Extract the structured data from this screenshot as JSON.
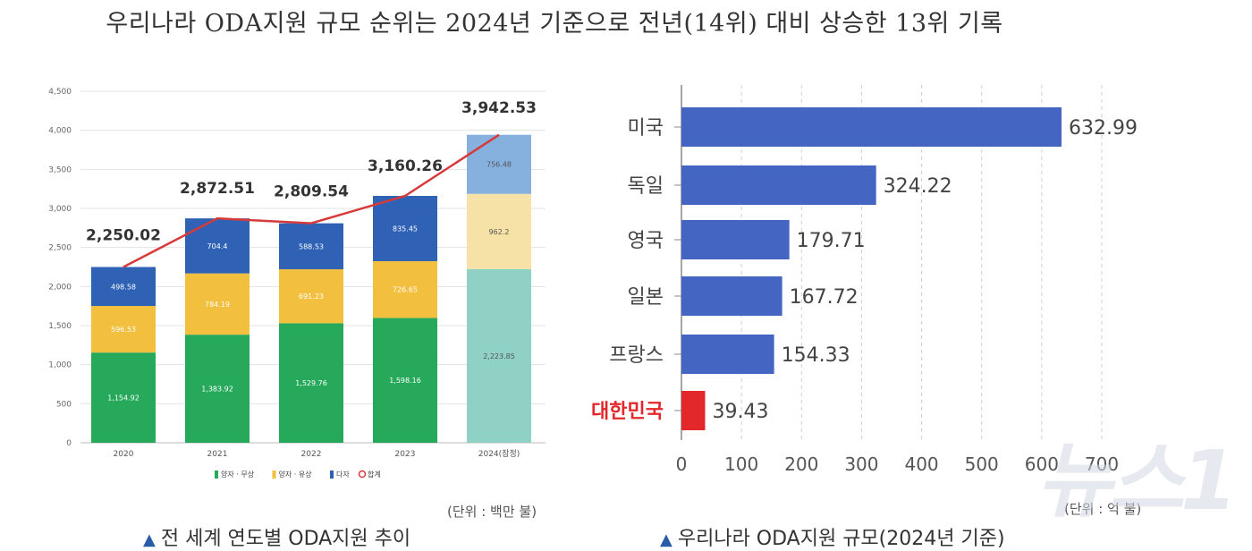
{
  "headline": "우리나라 ODA지원 규모 순위는 2024년 기준으로 전년(14위) 대비 상승한 13위 기록",
  "watermark": "뉴스1",
  "left_chart": {
    "caption": "전 세계 연도별 ODA지원 추이",
    "unit_note": "(단위 : 백만 불)"
  },
  "right_chart": {
    "caption": "우리나라 ODA지원 규모(2024년 기준)",
    "unit_note": "(단위 : 억 불)"
  },
  "chart_data": [
    {
      "type": "bar",
      "stacked": true,
      "categories": [
        "2020",
        "2021",
        "2022",
        "2023",
        "2024(잠정)"
      ],
      "series": [
        {
          "name": "양자 · 무상",
          "values": [
            1154.92,
            1383.92,
            1529.76,
            1598.16,
            2223.85
          ],
          "color": "#27a95c",
          "color_2024": "#8fd1c4"
        },
        {
          "name": "양자 · 유상",
          "values": [
            596.53,
            784.19,
            691.23,
            726.65,
            962.2
          ],
          "color": "#f2bf3e",
          "color_2024": "#f6e2a6"
        },
        {
          "name": "다자",
          "values": [
            498.58,
            704.4,
            588.53,
            835.45,
            756.48
          ],
          "color": "#2f62b5",
          "color_2024": "#86b0de"
        }
      ],
      "totals": {
        "name": "합계",
        "labels": [
          "2,250.02",
          "2,872.51",
          "2,809.54",
          "3,160.26",
          "3,942.53"
        ],
        "values": [
          2250.02,
          2872.51,
          2809.54,
          3160.26,
          3942.53
        ],
        "color": "#d63a3a"
      },
      "segment_labels": [
        [
          "1,154.92",
          "596.53",
          "498.58"
        ],
        [
          "1,383.92",
          "784.19",
          "704.4"
        ],
        [
          "1,529.76",
          "691.23",
          "588.53"
        ],
        [
          "1,598.16",
          "726.65",
          "835.45"
        ],
        [
          "2,223.85",
          "962.2",
          "756.48"
        ]
      ],
      "yticks": [
        "0",
        "500",
        "1,000",
        "1,500",
        "2,000",
        "2,500",
        "3,000",
        "3,500",
        "4,000",
        "4,500"
      ],
      "ylim": [
        0,
        4500
      ],
      "grid": true,
      "legend_position": "bottom"
    },
    {
      "type": "bar",
      "orientation": "horizontal",
      "categories": [
        "미국",
        "독일",
        "영국",
        "일본",
        "프랑스",
        "대한민국"
      ],
      "values": [
        632.99,
        324.22,
        179.71,
        167.72,
        154.33,
        39.43
      ],
      "value_labels": [
        "632.99",
        "324.22",
        "179.71",
        "167.72",
        "154.33",
        "39.43"
      ],
      "colors": [
        "#4466c2",
        "#4466c2",
        "#4466c2",
        "#4466c2",
        "#4466c2",
        "#e3282b"
      ],
      "highlight_category": "대한민국",
      "xticks": [
        "0",
        "100",
        "200",
        "300",
        "400",
        "500",
        "600",
        "700"
      ],
      "xlim": [
        0,
        700
      ],
      "grid": true
    }
  ]
}
